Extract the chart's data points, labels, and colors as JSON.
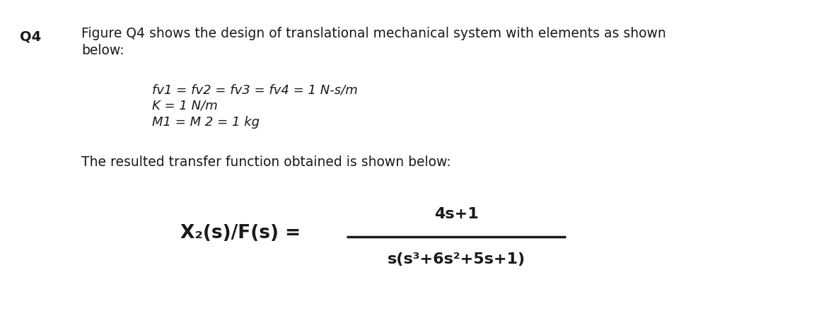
{
  "bg_color": "#ffffff",
  "label_q4": "Q4",
  "line1": "Figure Q4 shows the design of translational mechanical system with elements as shown",
  "line2": "below:",
  "param1": "fv1 = fv2 = fv3 = fv4 = 1 N-s/m",
  "param2": "K = 1 N/m",
  "param3": "M1 = M 2 = 1 kg",
  "transfer_intro": "The resulted transfer function obtained is shown below:",
  "lhs": "X₂(s)/F(s) =",
  "numerator": "4s+1",
  "denominator": "s(s³+6s²+5s+1)",
  "text_color": "#1a1a1a",
  "fig_width": 11.75,
  "fig_height": 4.57,
  "dpi": 100
}
